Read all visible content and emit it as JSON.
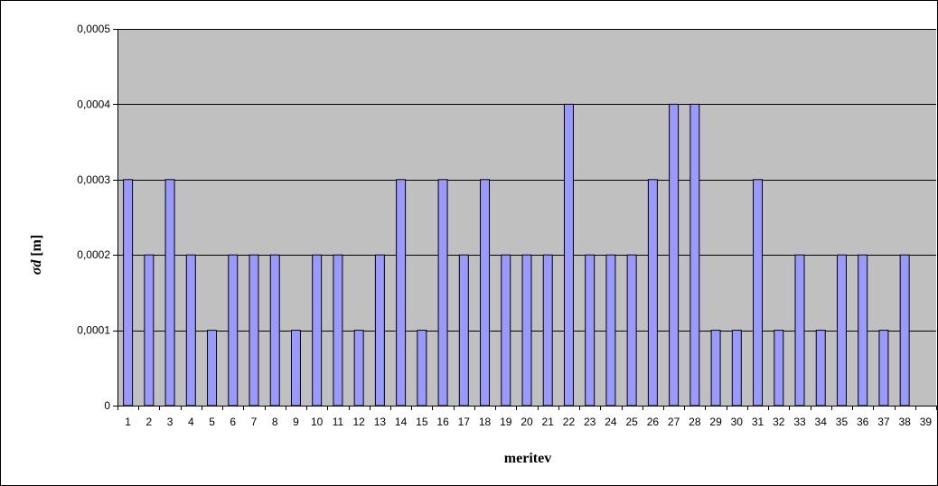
{
  "chart_data": {
    "type": "bar",
    "title": "",
    "xlabel": "meritev",
    "ylabel_symbol": "σd",
    "ylabel_unit": " [m]",
    "categories": [
      "1",
      "2",
      "3",
      "4",
      "5",
      "6",
      "7",
      "8",
      "9",
      "10",
      "11",
      "12",
      "13",
      "14",
      "15",
      "16",
      "17",
      "18",
      "19",
      "20",
      "21",
      "22",
      "23",
      "24",
      "25",
      "26",
      "27",
      "28",
      "29",
      "30",
      "31",
      "32",
      "33",
      "34",
      "35",
      "36",
      "37",
      "38",
      "39"
    ],
    "values": [
      0.0003,
      0.0002,
      0.0003,
      0.0002,
      0.0001,
      0.0002,
      0.0002,
      0.0002,
      0.0001,
      0.0002,
      0.0002,
      0.0001,
      0.0002,
      0.0003,
      0.0001,
      0.0003,
      0.0002,
      0.0003,
      0.0002,
      0.0002,
      0.0002,
      0.0004,
      0.0002,
      0.0002,
      0.0002,
      0.0003,
      0.0004,
      0.0004,
      0.0001,
      0.0001,
      0.0003,
      0.0001,
      0.0002,
      0.0001,
      0.0002,
      0.0002,
      0.0001,
      0.0002,
      null
    ],
    "ylim": [
      0,
      0.0005
    ],
    "yticks": [
      0,
      0.0001,
      0.0002,
      0.0003,
      0.0004,
      0.0005
    ],
    "ytick_labels": [
      "0",
      "0,0001",
      "0,0002",
      "0,0003",
      "0,0004",
      "0,0005"
    ],
    "grid": true,
    "legend": "none",
    "colors": {
      "plot_background": "#c0c0c0",
      "bar_fill": "#9999ff",
      "bar_stroke": "#000000",
      "gridline": "#000000"
    }
  }
}
